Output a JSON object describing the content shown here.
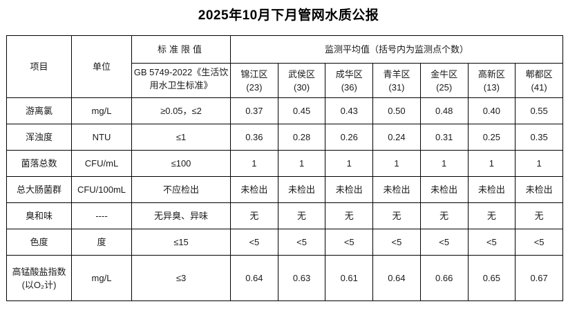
{
  "title": "2025年10月下月管网水质公报",
  "colors": {
    "border": "#000000",
    "text": "#1a1a1a",
    "background": "#ffffff"
  },
  "table": {
    "header": {
      "item_label": "项目",
      "unit_label": "单位",
      "standard_limit_label": "标准限值",
      "standard_reference": "GB 5749-2022《生活饮用水卫生标准》",
      "monitoring_label": "监测平均值（括号内为监测点个数）",
      "districts": [
        {
          "name": "锦江区",
          "count": "(23)"
        },
        {
          "name": "武侯区",
          "count": "(30)"
        },
        {
          "name": "成华区",
          "count": "(36)"
        },
        {
          "name": "青羊区",
          "count": "(31)"
        },
        {
          "name": "金牛区",
          "count": "(25)"
        },
        {
          "name": "高新区",
          "count": "(13)"
        },
        {
          "name": "郫都区",
          "count": "(41)"
        }
      ]
    },
    "rows": [
      {
        "item": "游离氯",
        "unit": "mg/L",
        "limit": "≥0.05，≤2",
        "values": [
          "0.37",
          "0.45",
          "0.43",
          "0.50",
          "0.48",
          "0.40",
          "0.55"
        ]
      },
      {
        "item": "浑浊度",
        "unit": "NTU",
        "limit": "≤1",
        "values": [
          "0.36",
          "0.28",
          "0.26",
          "0.24",
          "0.31",
          "0.25",
          "0.35"
        ]
      },
      {
        "item": "菌落总数",
        "unit": "CFU/mL",
        "limit": "≤100",
        "values": [
          "1",
          "1",
          "1",
          "1",
          "1",
          "1",
          "1"
        ]
      },
      {
        "item": "总大肠菌群",
        "unit": "CFU/100mL",
        "limit": "不应检出",
        "values": [
          "未检出",
          "未检出",
          "未检出",
          "未检出",
          "未检出",
          "未检出",
          "未检出"
        ]
      },
      {
        "item": "臭和味",
        "unit": "----",
        "limit": "无异臭、异味",
        "values": [
          "无",
          "无",
          "无",
          "无",
          "无",
          "无",
          "无"
        ]
      },
      {
        "item": "色度",
        "unit": "度",
        "limit": "≤15",
        "values": [
          "<5",
          "<5",
          "<5",
          "<5",
          "<5",
          "<5",
          "<5"
        ]
      },
      {
        "item": "高锰酸盐指数",
        "item_sub": "(以O₂计)",
        "unit": "mg/L",
        "limit": "≤3",
        "values": [
          "0.64",
          "0.63",
          "0.61",
          "0.64",
          "0.66",
          "0.65",
          "0.67"
        ]
      }
    ]
  }
}
